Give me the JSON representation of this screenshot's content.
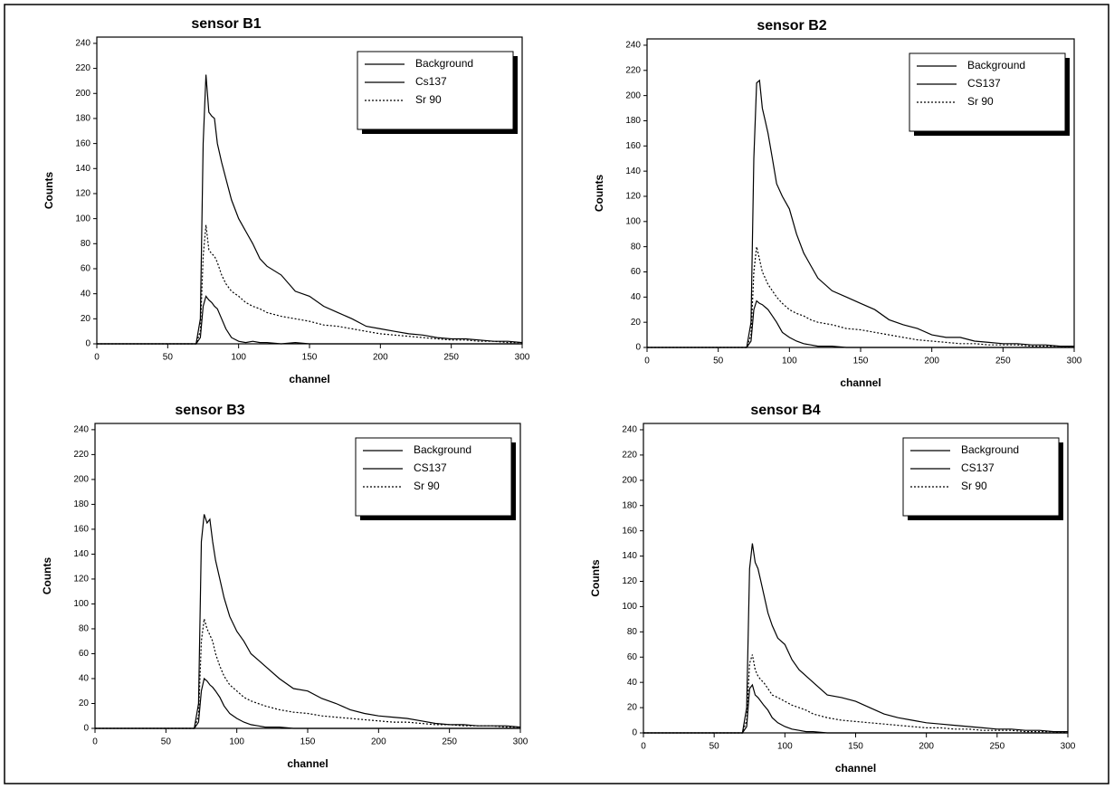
{
  "chart_data": [
    {
      "type": "line",
      "title": "sensor B1",
      "x_label": "channel",
      "y_label": "Counts",
      "xlim": [
        0,
        300
      ],
      "ylim": [
        0,
        245
      ],
      "xticks": [
        0,
        50,
        100,
        150,
        200,
        250,
        300
      ],
      "yticks": [
        0,
        20,
        40,
        60,
        80,
        100,
        120,
        140,
        160,
        180,
        200,
        220,
        240
      ],
      "legend": "upper right",
      "x": [
        0,
        50,
        70,
        73,
        75,
        77,
        79,
        81,
        83,
        85,
        88,
        91,
        95,
        100,
        105,
        110,
        115,
        120,
        130,
        140,
        150,
        160,
        170,
        180,
        190,
        200,
        210,
        220,
        230,
        240,
        250,
        260,
        270,
        280,
        290,
        300
      ],
      "series": [
        {
          "name": "Background",
          "color": "#000000",
          "style": "solid",
          "values": [
            0,
            0,
            0,
            5,
            30,
            38,
            35,
            33,
            30,
            28,
            20,
            12,
            5,
            2,
            1,
            2,
            1,
            1,
            0,
            1,
            0,
            0,
            0,
            0,
            0,
            0,
            0,
            0,
            0,
            0,
            0,
            0,
            0,
            0,
            0,
            0
          ]
        },
        {
          "name": "Cs137",
          "color": "#000000",
          "style": "solid",
          "values": [
            0,
            0,
            0,
            20,
            160,
            215,
            185,
            182,
            180,
            160,
            145,
            132,
            115,
            100,
            90,
            80,
            68,
            62,
            55,
            42,
            38,
            30,
            25,
            20,
            14,
            12,
            10,
            8,
            7,
            5,
            4,
            4,
            3,
            2,
            2,
            1
          ]
        },
        {
          "name": "Sr 90",
          "color": "#000000",
          "style": "dotted",
          "values": [
            0,
            0,
            0,
            10,
            70,
            95,
            75,
            72,
            70,
            65,
            55,
            48,
            42,
            38,
            33,
            30,
            28,
            25,
            22,
            20,
            18,
            15,
            14,
            12,
            10,
            8,
            7,
            6,
            5,
            4,
            3,
            3,
            2,
            2,
            1,
            1
          ]
        }
      ]
    },
    {
      "type": "line",
      "title": "sensor B2",
      "x_label": "channel",
      "y_label": "Counts",
      "xlim": [
        0,
        300
      ],
      "ylim": [
        0,
        245
      ],
      "xticks": [
        0,
        50,
        100,
        150,
        200,
        250,
        300
      ],
      "yticks": [
        0,
        20,
        40,
        60,
        80,
        100,
        120,
        140,
        160,
        180,
        200,
        220,
        240
      ],
      "legend": "upper right",
      "x": [
        0,
        50,
        70,
        73,
        75,
        77,
        79,
        81,
        83,
        85,
        88,
        91,
        95,
        100,
        105,
        110,
        115,
        120,
        130,
        140,
        150,
        160,
        170,
        180,
        190,
        200,
        210,
        220,
        230,
        240,
        250,
        260,
        270,
        280,
        290,
        300
      ],
      "series": [
        {
          "name": "Background",
          "color": "#000000",
          "style": "solid",
          "values": [
            0,
            0,
            0,
            5,
            30,
            37,
            35,
            34,
            32,
            30,
            25,
            20,
            12,
            8,
            5,
            3,
            2,
            1,
            1,
            0,
            0,
            0,
            0,
            0,
            0,
            0,
            0,
            0,
            0,
            0,
            0,
            0,
            0,
            0,
            0,
            0
          ]
        },
        {
          "name": "CS137",
          "color": "#000000",
          "style": "solid",
          "values": [
            0,
            0,
            0,
            20,
            150,
            210,
            212,
            190,
            180,
            170,
            150,
            130,
            120,
            110,
            90,
            75,
            65,
            55,
            45,
            40,
            35,
            30,
            22,
            18,
            15,
            10,
            8,
            8,
            5,
            4,
            3,
            3,
            2,
            2,
            1,
            1
          ]
        },
        {
          "name": "Sr 90",
          "color": "#000000",
          "style": "dotted",
          "values": [
            0,
            0,
            0,
            10,
            60,
            80,
            70,
            60,
            55,
            50,
            45,
            40,
            35,
            30,
            27,
            25,
            22,
            20,
            18,
            15,
            14,
            12,
            10,
            8,
            6,
            5,
            4,
            3,
            3,
            2,
            2,
            2,
            1,
            1,
            1,
            0
          ]
        }
      ]
    },
    {
      "type": "line",
      "title": "sensor B3",
      "x_label": "channel",
      "y_label": "Counts",
      "xlim": [
        0,
        300
      ],
      "ylim": [
        0,
        245
      ],
      "xticks": [
        0,
        50,
        100,
        150,
        200,
        250,
        300
      ],
      "yticks": [
        0,
        20,
        40,
        60,
        80,
        100,
        120,
        140,
        160,
        180,
        200,
        220,
        240
      ],
      "legend": "upper right",
      "x": [
        0,
        50,
        70,
        73,
        75,
        77,
        79,
        81,
        83,
        85,
        88,
        91,
        95,
        100,
        105,
        110,
        115,
        120,
        130,
        140,
        150,
        160,
        170,
        180,
        190,
        200,
        210,
        220,
        230,
        240,
        250,
        260,
        270,
        280,
        290,
        300
      ],
      "series": [
        {
          "name": "Background",
          "color": "#000000",
          "style": "solid",
          "values": [
            0,
            0,
            0,
            5,
            30,
            40,
            38,
            35,
            33,
            30,
            25,
            18,
            12,
            8,
            5,
            3,
            2,
            1,
            1,
            0,
            0,
            0,
            0,
            0,
            0,
            0,
            0,
            0,
            0,
            0,
            0,
            0,
            0,
            0,
            0,
            0
          ]
        },
        {
          "name": "CS137",
          "color": "#000000",
          "style": "solid",
          "values": [
            0,
            0,
            0,
            20,
            150,
            172,
            165,
            168,
            150,
            135,
            120,
            105,
            90,
            78,
            70,
            60,
            55,
            50,
            40,
            32,
            30,
            24,
            20,
            15,
            12,
            10,
            9,
            8,
            6,
            4,
            3,
            3,
            2,
            2,
            2,
            1
          ]
        },
        {
          "name": "Sr 90",
          "color": "#000000",
          "style": "dotted",
          "values": [
            0,
            0,
            0,
            10,
            70,
            88,
            80,
            75,
            70,
            60,
            50,
            42,
            35,
            30,
            25,
            22,
            20,
            18,
            15,
            13,
            12,
            10,
            9,
            8,
            7,
            6,
            5,
            5,
            4,
            3,
            3,
            2,
            2,
            2,
            1,
            1
          ]
        }
      ]
    },
    {
      "type": "line",
      "title": "sensor B4",
      "x_label": "channel",
      "y_label": "Counts",
      "xlim": [
        0,
        300
      ],
      "ylim": [
        0,
        245
      ],
      "xticks": [
        0,
        50,
        100,
        150,
        200,
        250,
        300
      ],
      "yticks": [
        0,
        20,
        40,
        60,
        80,
        100,
        120,
        140,
        160,
        180,
        200,
        220,
        240
      ],
      "legend": "upper right",
      "x": [
        0,
        50,
        70,
        73,
        75,
        77,
        79,
        81,
        83,
        85,
        88,
        91,
        95,
        100,
        105,
        110,
        115,
        120,
        130,
        140,
        150,
        160,
        170,
        180,
        190,
        200,
        210,
        220,
        230,
        240,
        250,
        260,
        270,
        280,
        290,
        300
      ],
      "series": [
        {
          "name": "Background",
          "color": "#000000",
          "style": "solid",
          "values": [
            0,
            0,
            0,
            5,
            35,
            38,
            30,
            28,
            25,
            22,
            18,
            12,
            8,
            5,
            3,
            2,
            1,
            1,
            0,
            0,
            0,
            0,
            0,
            0,
            0,
            0,
            0,
            0,
            0,
            0,
            0,
            0,
            0,
            0,
            0,
            0
          ]
        },
        {
          "name": "CS137",
          "color": "#000000",
          "style": "solid",
          "values": [
            0,
            0,
            0,
            20,
            130,
            150,
            135,
            130,
            120,
            110,
            95,
            85,
            75,
            70,
            58,
            50,
            45,
            40,
            30,
            28,
            25,
            20,
            15,
            12,
            10,
            8,
            7,
            6,
            5,
            4,
            3,
            3,
            2,
            2,
            1,
            1
          ]
        },
        {
          "name": "Sr 90",
          "color": "#000000",
          "style": "dotted",
          "values": [
            0,
            0,
            0,
            10,
            55,
            62,
            50,
            45,
            42,
            40,
            35,
            30,
            28,
            25,
            22,
            20,
            18,
            15,
            12,
            10,
            9,
            8,
            7,
            6,
            5,
            4,
            4,
            3,
            3,
            2,
            2,
            2,
            1,
            1,
            1,
            0
          ]
        }
      ]
    }
  ]
}
